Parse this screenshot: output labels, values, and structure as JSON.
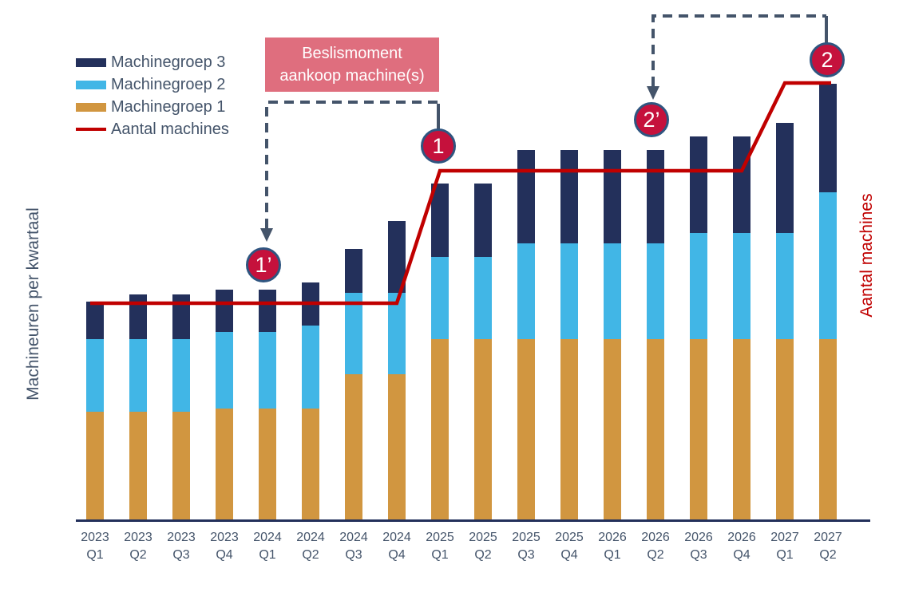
{
  "figure": {
    "y_axis_left_label": "Machineuren per kwartaal",
    "y_axis_right_label": "Aantal machines",
    "background_color": "#FFFFFF",
    "axis_line_color": "#23305B",
    "tick_label_color": "#44546A"
  },
  "legend": {
    "items": [
      {
        "label": "Machinegroep 3",
        "color": "#23305B",
        "swatch_type": "box"
      },
      {
        "label": "Machinegroep 2",
        "color": "#41B6E6",
        "swatch_type": "box"
      },
      {
        "label": "Machinegroep 1",
        "color": "#D19640",
        "swatch_type": "box"
      },
      {
        "label": "Aantal machines",
        "color": "#C00000",
        "swatch_type": "line"
      }
    ]
  },
  "annotations": {
    "decision_box": {
      "text": "Beslismoment\naankoop machine(s)",
      "bg_color": "#DF6E7E",
      "text_color": "#FFFFFF"
    },
    "bracket_color": "#44546A",
    "marker_fill": "#C5113C",
    "marker_border": "#2F5580",
    "markers": [
      {
        "label": "1’",
        "points_to": "2024 Q1"
      },
      {
        "label": "1",
        "points_to": "2025 Q1"
      },
      {
        "label": "2’",
        "points_to": "2026 Q2"
      },
      {
        "label": "2",
        "points_to": "2027 Q2"
      }
    ]
  },
  "chart_data": {
    "type": "bar",
    "stacked": true,
    "title": "",
    "xlabel": "",
    "ylabel": "Machineuren per kwartaal",
    "ylabel_right": "Aantal machines",
    "units": "relative units (no numeric axis labels shown)",
    "ylim": [
      0,
      580
    ],
    "grid": false,
    "legend_position": "top-left",
    "x": [
      {
        "year": "2023",
        "quarter": "Q1"
      },
      {
        "year": "2023",
        "quarter": "Q2"
      },
      {
        "year": "2023",
        "quarter": "Q3"
      },
      {
        "year": "2023",
        "quarter": "Q4"
      },
      {
        "year": "2024",
        "quarter": "Q1"
      },
      {
        "year": "2024",
        "quarter": "Q2"
      },
      {
        "year": "2024",
        "quarter": "Q3"
      },
      {
        "year": "2024",
        "quarter": "Q4"
      },
      {
        "year": "2025",
        "quarter": "Q1"
      },
      {
        "year": "2025",
        "quarter": "Q2"
      },
      {
        "year": "2025",
        "quarter": "Q3"
      },
      {
        "year": "2025",
        "quarter": "Q4"
      },
      {
        "year": "2026",
        "quarter": "Q1"
      },
      {
        "year": "2026",
        "quarter": "Q2"
      },
      {
        "year": "2026",
        "quarter": "Q3"
      },
      {
        "year": "2026",
        "quarter": "Q4"
      },
      {
        "year": "2027",
        "quarter": "Q1"
      },
      {
        "year": "2027",
        "quarter": "Q2"
      }
    ],
    "series": [
      {
        "name": "Machinegroep 1",
        "key": "machinegroep-1",
        "color": "#D19640",
        "values": [
          137,
          137,
          137,
          141,
          141,
          141,
          184,
          184,
          228,
          228,
          228,
          228,
          228,
          228,
          228,
          228,
          228,
          228
        ]
      },
      {
        "name": "Machinegroep 2",
        "key": "machinegroep-2",
        "color": "#41B6E6",
        "values": [
          91,
          91,
          91,
          96,
          96,
          104,
          102,
          102,
          103,
          103,
          120,
          120,
          120,
          120,
          133,
          133,
          133,
          184
        ]
      },
      {
        "name": "Machinegroep 3",
        "key": "machinegroep-3",
        "color": "#23305B",
        "values": [
          47,
          56,
          56,
          53,
          53,
          54,
          55,
          90,
          92,
          92,
          117,
          117,
          117,
          117,
          121,
          121,
          138,
          136
        ]
      }
    ],
    "line": {
      "name": "Aantal machines",
      "color": "#C00000",
      "values": [
        273,
        273,
        273,
        273,
        273,
        273,
        273,
        273,
        439,
        439,
        439,
        439,
        439,
        439,
        439,
        439,
        549,
        549
      ]
    }
  }
}
